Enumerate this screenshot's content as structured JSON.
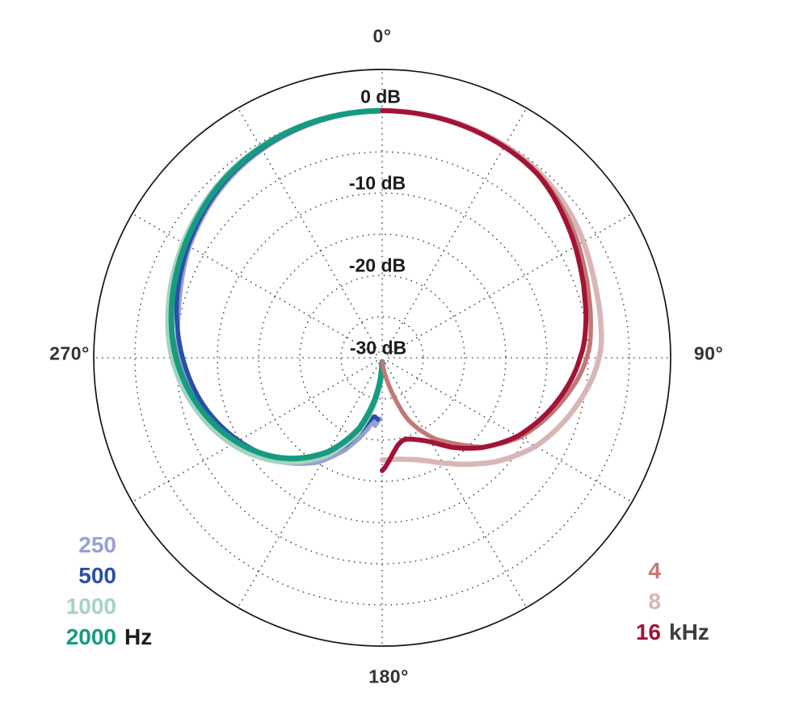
{
  "chart": {
    "background": "#ffffff",
    "grid_color": "#3b3b3b",
    "outer_circle_color": "#141414",
    "angle_label_color": "#333333",
    "db_label_color": "#1c1c1c"
  },
  "chart_data": {
    "type": "line",
    "subtype": "polar-directivity",
    "title": "",
    "units": {
      "angle": "degrees",
      "level": "dB"
    },
    "angular_axis": {
      "labels": [
        "0°",
        "90°",
        "180°",
        "270°"
      ],
      "spoke_step_deg": 30,
      "zero_at": "top"
    },
    "radial_axis": {
      "labels": [
        "0 dB",
        "-10 dB",
        "-20 dB",
        "-30 dB"
      ],
      "ring_values_db": [
        0,
        -5,
        -10,
        -15,
        -20,
        -25
      ],
      "min_db": -30,
      "outer_frame_db": 5,
      "grid": "dotted"
    },
    "legend_position": "bottom corners, left = Hz series, right = kHz series",
    "series": [
      {
        "name": "250 Hz",
        "side": "left",
        "color": "#98a0d2",
        "width": 5.5,
        "points_deg_db": [
          [
            0,
            0
          ],
          [
            20,
            -0.45
          ],
          [
            40,
            -1.4
          ],
          [
            60,
            -3.0
          ],
          [
            75,
            -4.5
          ],
          [
            90,
            -5.5
          ],
          [
            105,
            -7.4
          ],
          [
            120,
            -9.7
          ],
          [
            135,
            -12.2
          ],
          [
            148,
            -15.0
          ],
          [
            158,
            -17.9
          ],
          [
            164,
            -19.8
          ],
          [
            169,
            -21.3
          ],
          [
            172,
            -22.3
          ],
          [
            174,
            -21.7
          ],
          [
            176,
            -22.2
          ],
          [
            178,
            -22.6
          ]
        ]
      },
      {
        "name": "500 Hz",
        "side": "left",
        "color": "#2a4fa9",
        "width": 5.5,
        "points_deg_db": [
          [
            0,
            0
          ],
          [
            20,
            -0.35
          ],
          [
            40,
            -1.2
          ],
          [
            60,
            -2.8
          ],
          [
            75,
            -4.2
          ],
          [
            90,
            -5.8
          ],
          [
            105,
            -7.6
          ],
          [
            120,
            -9.9
          ],
          [
            135,
            -12.5
          ],
          [
            148,
            -15.6
          ],
          [
            158,
            -18.7
          ],
          [
            165,
            -21.2
          ],
          [
            170,
            -22.5
          ],
          [
            173,
            -22.8
          ],
          [
            176,
            -22.5
          ]
        ]
      },
      {
        "name": "1000 Hz",
        "side": "left",
        "color": "#a6d3c0",
        "width": 6.5,
        "points_deg_db": [
          [
            0,
            0
          ],
          [
            20,
            -0.2
          ],
          [
            40,
            -0.85
          ],
          [
            60,
            -2.1
          ],
          [
            75,
            -3.2
          ],
          [
            90,
            -4.5
          ],
          [
            105,
            -6.5
          ],
          [
            120,
            -9.0
          ],
          [
            135,
            -12.2
          ],
          [
            150,
            -16.2
          ],
          [
            162,
            -20.4
          ],
          [
            170,
            -24.2
          ],
          [
            176,
            -27.2
          ],
          [
            180,
            -29.3
          ]
        ]
      },
      {
        "name": "2000 Hz",
        "side": "left",
        "color": "#169b80",
        "width": 7,
        "points_deg_db": [
          [
            0,
            0
          ],
          [
            20,
            -0.25
          ],
          [
            40,
            -1.0
          ],
          [
            60,
            -2.4
          ],
          [
            75,
            -3.6
          ],
          [
            90,
            -5.0
          ],
          [
            105,
            -7.0
          ],
          [
            120,
            -9.6
          ],
          [
            135,
            -12.8
          ],
          [
            150,
            -16.8
          ],
          [
            162,
            -21.0
          ],
          [
            170,
            -24.8
          ],
          [
            176,
            -27.6
          ],
          [
            180,
            -29.5
          ]
        ]
      },
      {
        "name": "8 kHz",
        "side": "right",
        "color": "#d8b6b6",
        "width": 6.5,
        "points_deg_db": [
          [
            0,
            0
          ],
          [
            20,
            -0.1
          ],
          [
            40,
            -0.5
          ],
          [
            55,
            -1.4
          ],
          [
            70,
            -2.6
          ],
          [
            80,
            -3.1
          ],
          [
            90,
            -3.7
          ],
          [
            105,
            -5.9
          ],
          [
            120,
            -8.5
          ],
          [
            132,
            -11.2
          ],
          [
            142,
            -13.6
          ],
          [
            152,
            -15.6
          ],
          [
            160,
            -16.8
          ],
          [
            168,
            -17.4
          ],
          [
            174,
            -17.6
          ],
          [
            180,
            -17.6
          ]
        ]
      },
      {
        "name": "4 kHz",
        "side": "right",
        "color": "#c27876",
        "width": 5.5,
        "points_deg_db": [
          [
            0,
            0
          ],
          [
            20,
            -0.15
          ],
          [
            40,
            -0.7
          ],
          [
            55,
            -2.0
          ],
          [
            70,
            -3.5
          ],
          [
            80,
            -4.3
          ],
          [
            90,
            -5.2
          ],
          [
            105,
            -7.8
          ],
          [
            120,
            -10.7
          ],
          [
            132,
            -13.8
          ],
          [
            140,
            -16.4
          ],
          [
            147,
            -18.3
          ],
          [
            153,
            -20.3
          ],
          [
            158,
            -22.2
          ],
          [
            163,
            -25.0
          ],
          [
            168,
            -27.2
          ],
          [
            173,
            -28.6
          ],
          [
            178,
            -29.5
          ]
        ]
      },
      {
        "name": "16 kHz",
        "side": "right",
        "color": "#a31336",
        "width": 6,
        "points_deg_db": [
          [
            0,
            0
          ],
          [
            20,
            -0.2
          ],
          [
            40,
            -0.8
          ],
          [
            55,
            -2.4
          ],
          [
            70,
            -4.0
          ],
          [
            80,
            -4.9
          ],
          [
            90,
            -6.0
          ],
          [
            105,
            -8.3
          ],
          [
            120,
            -11.0
          ],
          [
            132,
            -13.7
          ],
          [
            142,
            -16.2
          ],
          [
            150,
            -18.2
          ],
          [
            158,
            -19.3
          ],
          [
            165,
            -19.7
          ],
          [
            170,
            -19.2
          ],
          [
            174,
            -18.2
          ],
          [
            177,
            -17.2
          ],
          [
            180,
            -16.3
          ]
        ]
      }
    ]
  },
  "legend_left": {
    "unit": "Hz",
    "unit_color": "#1c1c1c",
    "items": [
      {
        "label": "250",
        "color": "#98a0d2"
      },
      {
        "label": "500",
        "color": "#2a4fa9"
      },
      {
        "label": "1000",
        "color": "#a6d3c0"
      },
      {
        "label": "2000",
        "color": "#169b80"
      }
    ]
  },
  "legend_right": {
    "unit": "kHz",
    "unit_color": "#3d3d3d",
    "items": [
      {
        "label": "4",
        "color": "#c27876"
      },
      {
        "label": "8",
        "color": "#d8b6b6"
      },
      {
        "label": "16",
        "color": "#a31336"
      }
    ]
  }
}
